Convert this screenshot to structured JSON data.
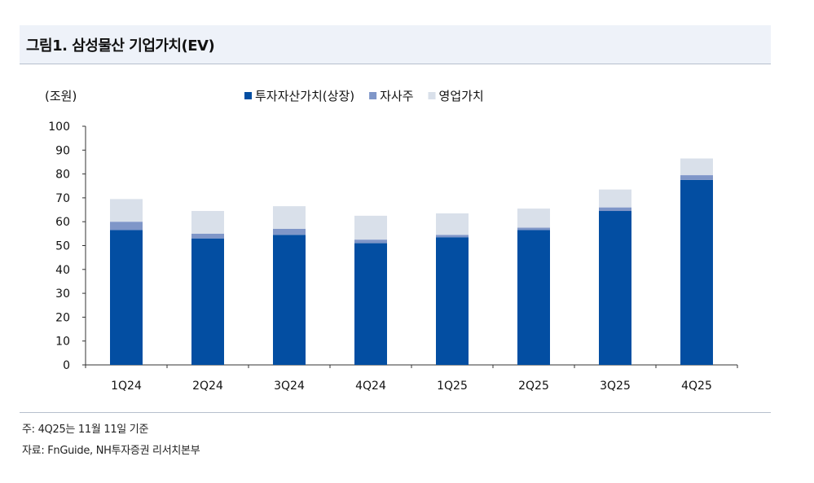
{
  "header": {
    "title": "그림1. 삼성물산 기업가치(EV)"
  },
  "chart_data": {
    "type": "bar",
    "stacked": true,
    "unit_label": "(조원)",
    "categories": [
      "1Q24",
      "2Q24",
      "3Q24",
      "4Q24",
      "1Q25",
      "2Q25",
      "3Q25",
      "4Q25"
    ],
    "series": [
      {
        "name": "투자자산가치(상장)",
        "color": "#034ea2",
        "values": [
          56.5,
          53,
          54.5,
          51,
          53.5,
          56.5,
          64.5,
          77.5
        ]
      },
      {
        "name": "자사주",
        "color": "#7f96c8",
        "values": [
          3.5,
          2,
          2.5,
          1.5,
          1,
          1,
          1.5,
          2
        ]
      },
      {
        "name": "영업가치",
        "color": "#d9e0ea",
        "values": [
          9.5,
          9.5,
          9.5,
          10,
          9,
          8,
          7.5,
          7
        ]
      }
    ],
    "ylim": [
      0,
      100
    ],
    "yticks": [
      0,
      10,
      20,
      30,
      40,
      50,
      60,
      70,
      80,
      90,
      100
    ],
    "legend_position": "top",
    "grid": false
  },
  "footer": {
    "note": "주: 4Q25는 11월 11일 기준",
    "source": "자료: FnGuide, NH투자증권 리서치본부"
  }
}
